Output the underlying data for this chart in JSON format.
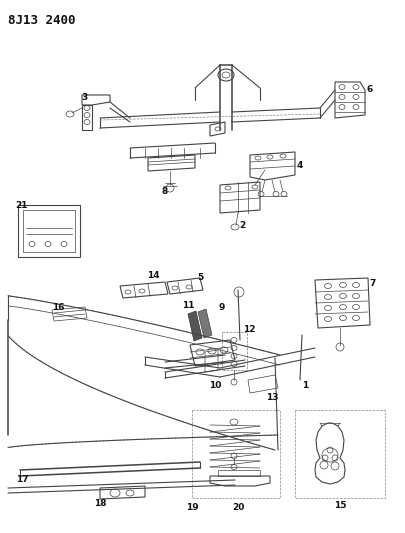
{
  "title": "8J13 2400",
  "bg_color": "#ffffff",
  "line_color": "#444444",
  "label_color": "#111111",
  "label_fontsize": 6.5,
  "fig_width": 4.05,
  "fig_height": 5.33,
  "dpi": 100
}
